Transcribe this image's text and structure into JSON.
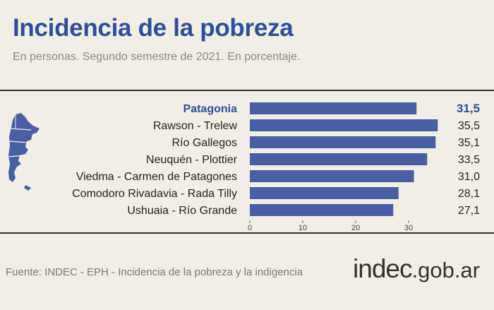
{
  "header": {
    "title": "Incidencia de la pobreza",
    "subtitle": "En personas. Segundo semestre de 2021. En porcentaje."
  },
  "footer": {
    "source": "Fuente: INDEC - EPH - Incidencia de la pobreza y la indigencia",
    "logo_main": "indec",
    "logo_suffix": ".gob.ar"
  },
  "colors": {
    "background": "#f1efe5",
    "bar": "#4a5ea3",
    "accent": "#2f4e9a"
  },
  "chart_data": {
    "type": "bar",
    "orientation": "horizontal",
    "categories": [
      "Patagonia",
      "Rawson - Trelew",
      "Río Gallegos",
      "Neuquén - Plottier",
      "Viedma - Carmen de Patagones",
      "Comodoro Rivadavia - Rada Tilly",
      "Ushuaia - Río Grande"
    ],
    "values": [
      31.5,
      35.5,
      35.1,
      33.5,
      31.0,
      28.1,
      27.1
    ],
    "value_labels": [
      "31,5",
      "35,5",
      "35,1",
      "33,5",
      "31,0",
      "28,1",
      "27,1"
    ],
    "highlight": "Patagonia",
    "xlim": [
      0,
      36
    ],
    "xticks": [
      0,
      10,
      20,
      30
    ],
    "title": "Incidencia de la pobreza",
    "subtitle": "En personas. Segundo semestre de 2021. En porcentaje.",
    "xlabel": "",
    "ylabel": "",
    "grid": false,
    "legend": "none"
  }
}
